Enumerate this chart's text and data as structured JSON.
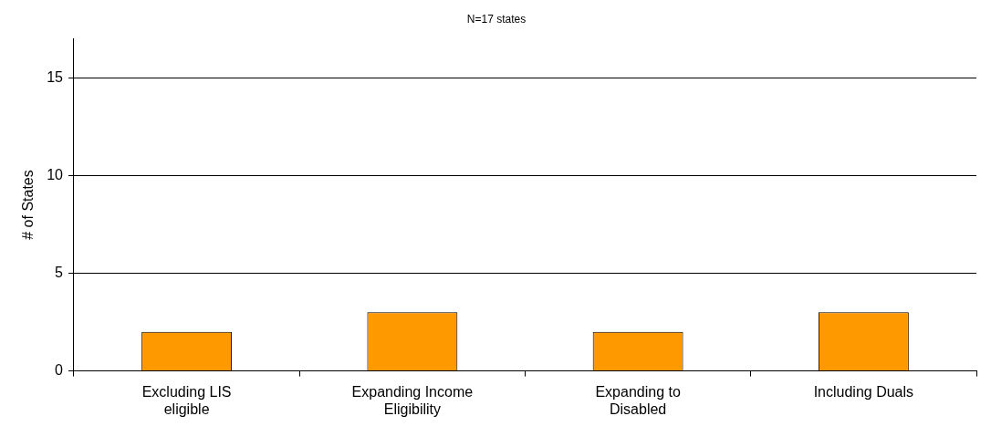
{
  "chart_data": {
    "type": "bar",
    "title": "N=17 states",
    "ylabel": "# of States",
    "categories": [
      "Excluding LIS eligible",
      "Expanding Income Eligibility",
      "Expanding to Disabled",
      "Including Duals"
    ],
    "values": [
      2,
      3,
      2,
      3
    ],
    "color": "#ff9900",
    "ylim": [
      0,
      17
    ],
    "yticks": [
      0,
      5,
      10,
      15
    ],
    "grid": "y",
    "legend": false
  }
}
